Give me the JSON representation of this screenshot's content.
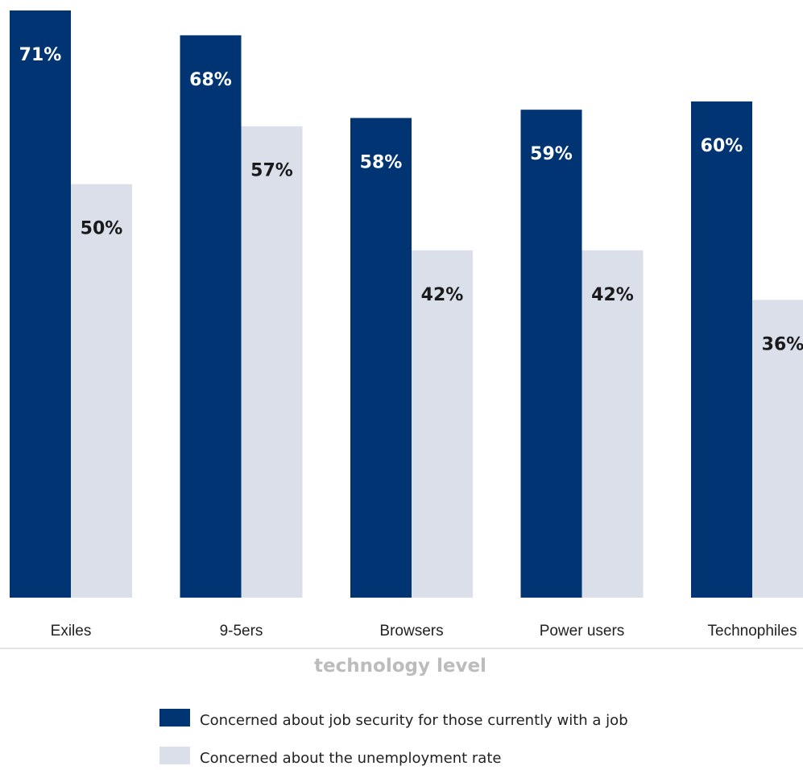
{
  "chart_data": {
    "type": "bar",
    "categories": [
      "Exiles",
      "9-5ers",
      "Browsers",
      "Power users",
      "Technophiles"
    ],
    "series": [
      {
        "name": "Concerned about job security for those currently with a job",
        "values": [
          71,
          68,
          58,
          59,
          60
        ],
        "color": "#003473"
      },
      {
        "name": "Concerned about the unemployment rate",
        "values": [
          50,
          57,
          42,
          42,
          36
        ],
        "color": "#dadfea"
      }
    ],
    "value_suffix": "%",
    "xlabel": "technology level",
    "ylabel": "",
    "ylim": [
      0,
      71
    ],
    "grid": false,
    "legend_position": "bottom"
  }
}
